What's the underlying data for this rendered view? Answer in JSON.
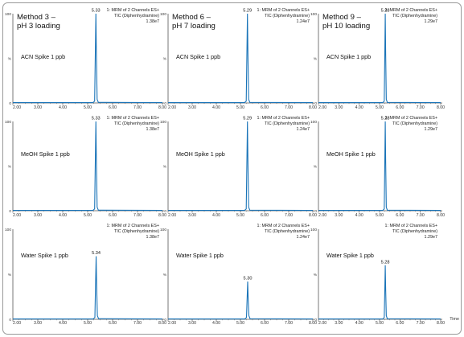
{
  "colors": {
    "trace": "#1a74b8",
    "axis": "#555555",
    "frame": "#888888",
    "text": "#111111"
  },
  "x_ticks": [
    "2.00",
    "3.00",
    "4.00",
    "5.00",
    "6.00",
    "7.00",
    "8.00"
  ],
  "y_ticks": {
    "top": "100",
    "mid": "%",
    "bottom": "0"
  },
  "x_axis_label": "Time",
  "methods": [
    {
      "line1": "Method 3 –",
      "line2": "pH 3 loading"
    },
    {
      "line1": "Method 6 –",
      "line2": "pH 7 loading"
    },
    {
      "line1": "Method 9 –",
      "line2": "pH 10 loading"
    }
  ],
  "chart_data": [
    {
      "type": "line",
      "row": 0,
      "col": 0,
      "sample": "ACN Spike 1 ppb",
      "info1": "1: MRM of 2 Channels ES+",
      "info2": "TIC (Diphenhydramine)",
      "info3": "1.38e7",
      "peak_rt": 5.33,
      "peak_label": "5.33",
      "peak_height_pct": 100,
      "xlim": [
        2.0,
        8.0
      ],
      "ylim": [
        0,
        100
      ]
    },
    {
      "type": "line",
      "row": 0,
      "col": 1,
      "sample": "ACN Spike 1 ppb",
      "info1": "1: MRM of 2 Channels ES+",
      "info2": "TIC (Diphenhydramine)",
      "info3": "1.24e7",
      "peak_rt": 5.29,
      "peak_label": "5.29",
      "peak_height_pct": 100,
      "xlim": [
        2.0,
        8.0
      ],
      "ylim": [
        0,
        100
      ]
    },
    {
      "type": "line",
      "row": 0,
      "col": 2,
      "sample": "ACN Spike 1 ppb",
      "info1": "1: MRM of 2 Channels ES+",
      "info2": "TIC (Diphenhydramine)",
      "info3": "1.29e7",
      "peak_rt": 5.28,
      "peak_label": "5.28",
      "peak_height_pct": 100,
      "xlim": [
        2.0,
        8.0
      ],
      "ylim": [
        0,
        100
      ]
    },
    {
      "type": "line",
      "row": 1,
      "col": 0,
      "sample": "MeOH Spike 1 ppb",
      "info1": "1: MRM of 2 Channels ES+",
      "info2": "TIC (Diphenhydramine)",
      "info3": "1.38e7",
      "peak_rt": 5.33,
      "peak_label": "5.33",
      "peak_height_pct": 100,
      "xlim": [
        2.0,
        8.0
      ],
      "ylim": [
        0,
        100
      ]
    },
    {
      "type": "line",
      "row": 1,
      "col": 1,
      "sample": "MeOH Spike 1 ppb",
      "info1": "1: MRM of 2 Channels ES+",
      "info2": "TIC (Diphenhydramine)",
      "info3": "1.24e7",
      "peak_rt": 5.29,
      "peak_label": "5.29",
      "peak_height_pct": 100,
      "xlim": [
        2.0,
        8.0
      ],
      "ylim": [
        0,
        100
      ]
    },
    {
      "type": "line",
      "row": 1,
      "col": 2,
      "sample": "MeOH Spike 1 ppb",
      "info1": "1: MRM of 2 Channels ES+",
      "info2": "TIC (Diphenhydramine)",
      "info3": "1.29e7",
      "peak_rt": 5.28,
      "peak_label": "5.28",
      "peak_height_pct": 100,
      "xlim": [
        2.0,
        8.0
      ],
      "ylim": [
        0,
        100
      ]
    },
    {
      "type": "line",
      "row": 2,
      "col": 0,
      "sample": "Water Spike 1 ppb",
      "info1": "1: MRM of 2 Channels ES+",
      "info2": "TIC (Diphenhydramine)",
      "info3": "1.38e7",
      "peak_rt": 5.34,
      "peak_label": "5.34",
      "peak_height_pct": 70,
      "xlim": [
        2.0,
        8.0
      ],
      "ylim": [
        0,
        100
      ]
    },
    {
      "type": "line",
      "row": 2,
      "col": 1,
      "sample": "Water Spike 1 ppb",
      "info1": "1: MRM of 2 Channels ES+",
      "info2": "TIC (Diphenhydramine)",
      "info3": "1.24e7",
      "peak_rt": 5.3,
      "peak_label": "5.30",
      "peak_height_pct": 42,
      "xlim": [
        2.0,
        8.0
      ],
      "ylim": [
        0,
        100
      ]
    },
    {
      "type": "line",
      "row": 2,
      "col": 2,
      "sample": "Water Spike 1 ppb",
      "info1": "1: MRM of 2 Channels ES+",
      "info2": "TIC (Diphenhydramine)",
      "info3": "1.29e7",
      "peak_rt": 5.28,
      "peak_label": "5.28",
      "peak_height_pct": 60,
      "xlim": [
        2.0,
        8.0
      ],
      "ylim": [
        0,
        100
      ]
    }
  ]
}
